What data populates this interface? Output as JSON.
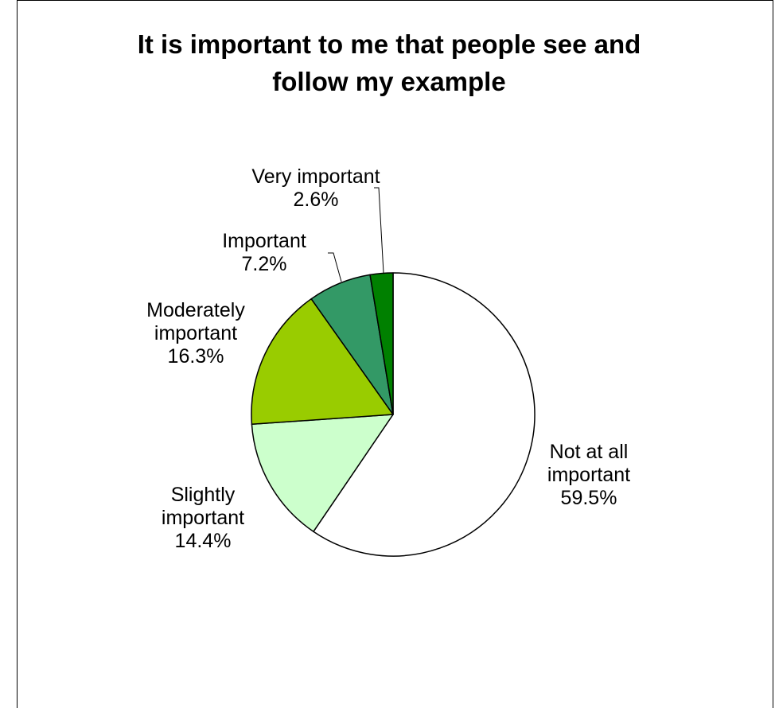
{
  "chart_data": {
    "type": "pie",
    "title_lines": [
      "It is important to me that people see and",
      "follow my example"
    ],
    "start_angle_deg": 0,
    "direction": "clockwise",
    "slices": [
      {
        "category": "Not at all important",
        "label_lines": [
          "Not at all",
          "important",
          "59.5%"
        ],
        "value": 59.5,
        "display": "59.5%",
        "color": "#ffffff"
      },
      {
        "category": "Slightly important",
        "label_lines": [
          "Slightly",
          "important",
          "14.4%"
        ],
        "value": 14.4,
        "display": "14.4%",
        "color": "#ccffcc"
      },
      {
        "category": "Moderately important",
        "label_lines": [
          "Moderately",
          "important",
          "16.3%"
        ],
        "value": 16.3,
        "display": "16.3%",
        "color": "#99cc00"
      },
      {
        "category": "Important",
        "label_lines": [
          "Important",
          "7.2%"
        ],
        "value": 7.2,
        "display": "7.2%",
        "color": "#339966"
      },
      {
        "category": "Very important",
        "label_lines": [
          "Very important",
          "2.6%"
        ],
        "value": 2.6,
        "display": "2.6%",
        "color": "#008000"
      }
    ],
    "legend": "none"
  }
}
